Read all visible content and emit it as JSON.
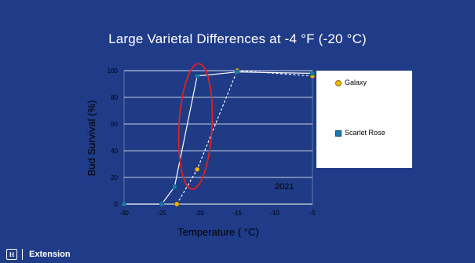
{
  "slide": {
    "title": "Large Varietal Differences at -4 °F (-20 °C)",
    "footer_logo": "H",
    "footer_text": "Extension"
  },
  "colors": {
    "background": "#203c88",
    "plot_bg": "#1f3b85",
    "gridline": "#ffffff",
    "line": "#ffffff",
    "galaxy_marker": "#f5b800",
    "scarlet_marker": "#1a7ab0",
    "annotation_ellipse": "#e0201f"
  },
  "chart_data": {
    "type": "line",
    "title": "Large Varietal Differences at -4 °F (-20 °C)",
    "xlabel": "Temperature ( °C)",
    "ylabel": "Bud Survival (%)",
    "xlim": [
      -30,
      -5
    ],
    "ylim": [
      0,
      100
    ],
    "x_ticks": [
      -30,
      -25,
      -20,
      -15,
      -10,
      -5
    ],
    "y_ticks": [
      0,
      20,
      40,
      60,
      80,
      100
    ],
    "grid": true,
    "legend_position": "right",
    "annotation_text": "2021",
    "series": [
      {
        "name": "Galaxy",
        "marker": "circle",
        "line_style": "dashed",
        "x": [
          -23,
          -20.3,
          -15,
          -5
        ],
        "y": [
          0,
          26,
          100,
          96
        ]
      },
      {
        "name": "Scarlet Rose",
        "marker": "square",
        "line_style": "solid",
        "x": [
          -30,
          -25,
          -23.3,
          -20.3,
          -15,
          -5
        ],
        "y": [
          0,
          0,
          13,
          96,
          99,
          98
        ]
      }
    ]
  }
}
